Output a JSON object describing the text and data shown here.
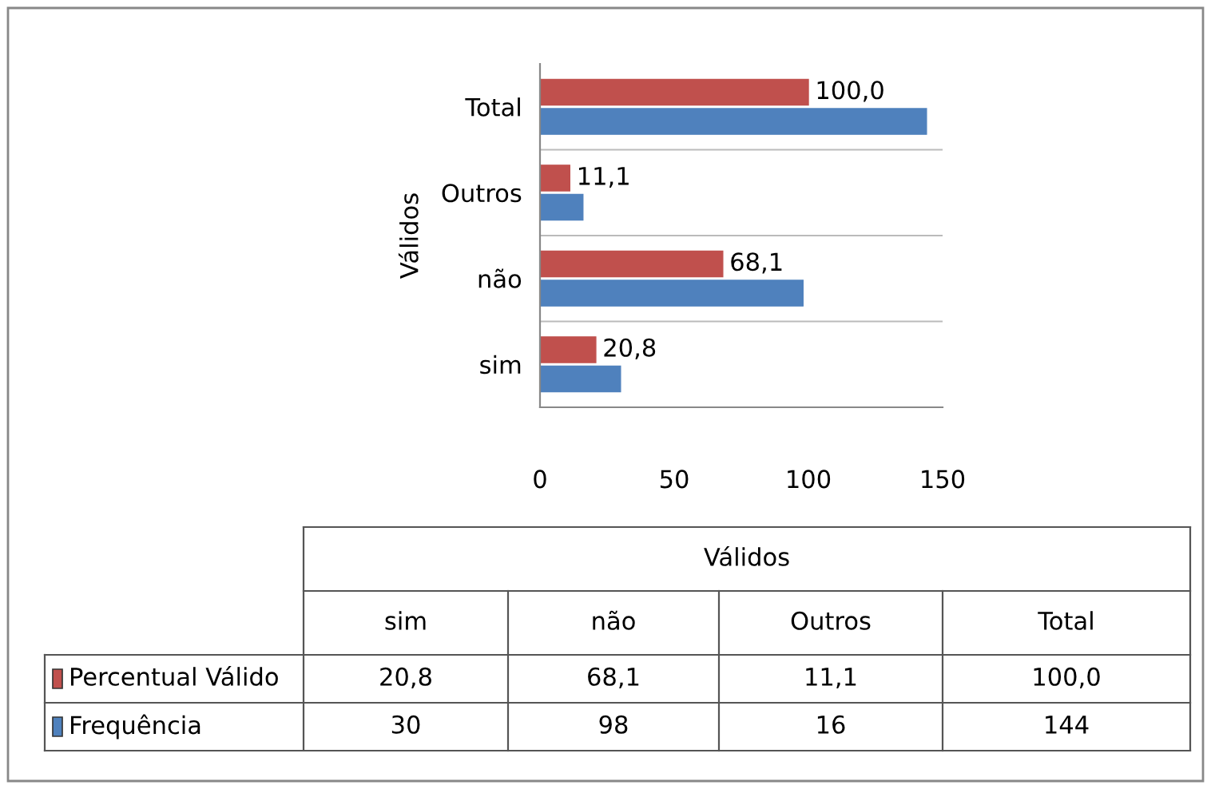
{
  "chart_data": {
    "type": "bar",
    "orientation": "horizontal",
    "ylabel": "Válidos",
    "categories": [
      "Total",
      "Outros",
      "não",
      "sim"
    ],
    "series": [
      {
        "name": "Percentual Válido",
        "color": "#c0504d",
        "values": [
          100.0,
          11.1,
          68.1,
          20.8
        ],
        "value_labels": [
          "100,0",
          "11,1",
          "68,1",
          "20,8"
        ]
      },
      {
        "name": "Frequência",
        "color": "#4f81bd",
        "values": [
          144,
          16,
          98,
          30
        ]
      }
    ],
    "legend": "bottom left",
    "xlim": [
      0,
      150
    ],
    "xticks": [
      0,
      50,
      100,
      150
    ],
    "annotations": [
      "20,8",
      "68,1",
      "11,1",
      "100,0",
      "30",
      "98",
      "16",
      "144"
    ]
  }
}
